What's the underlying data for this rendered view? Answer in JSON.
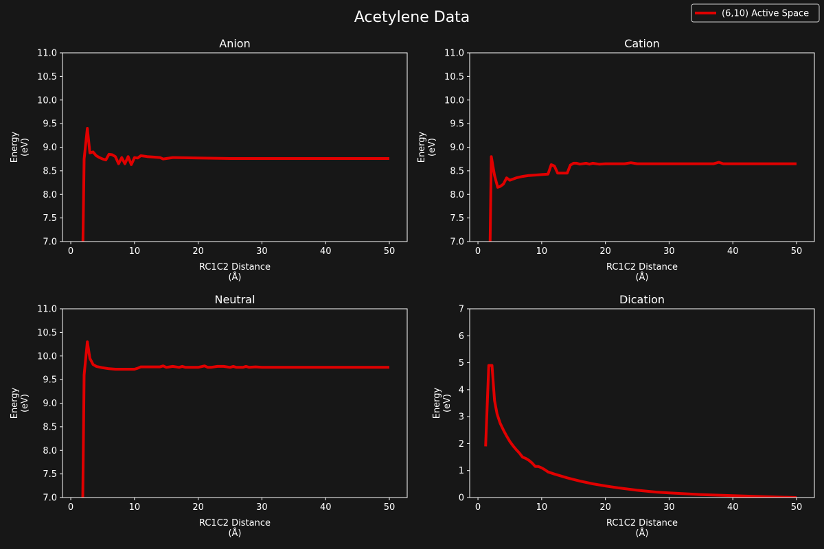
{
  "figure": {
    "title": "Acetylene Data",
    "legend_label": "(6,10) Active Space",
    "legend_position": "top-right",
    "background": "#171717",
    "line_color": "#e00000",
    "text_color": "#ffffff"
  },
  "chart_data": [
    {
      "type": "line",
      "title": "Anion",
      "xlabel": "RC1C2 Distance\n(Å)",
      "ylabel": "Energy\n(eV)",
      "xlim": [
        -1.3,
        52.8
      ],
      "ylim": [
        7.0,
        11.0
      ],
      "xticks": [
        0,
        10,
        20,
        30,
        40,
        50
      ],
      "yticks": [
        7.0,
        7.5,
        8.0,
        8.5,
        9.0,
        9.5,
        10.0,
        10.5,
        11.0
      ],
      "ytick_labels": [
        "7.0",
        "7.5",
        "8.0",
        "8.5",
        "9.0",
        "9.5",
        "10.0",
        "10.5",
        "11.0"
      ],
      "series": [
        {
          "x": [
            1.8,
            2.1,
            2.6,
            3.0,
            3.5,
            4.0,
            4.5,
            5.0,
            5.5,
            6.0,
            6.5,
            7.0,
            7.5,
            8.0,
            8.5,
            9.0,
            9.5,
            10.0,
            10.5,
            11.0,
            12.0,
            13.0,
            14.0,
            14.5,
            15.0,
            16.0,
            20.0,
            25.0,
            30.0,
            40.0,
            50.0
          ],
          "y": [
            6.0,
            8.75,
            9.4,
            8.88,
            8.9,
            8.82,
            8.78,
            8.75,
            8.73,
            8.85,
            8.84,
            8.8,
            8.65,
            8.78,
            8.65,
            8.8,
            8.63,
            8.78,
            8.77,
            8.82,
            8.8,
            8.79,
            8.78,
            8.75,
            8.76,
            8.78,
            8.77,
            8.76,
            8.76,
            8.76,
            8.76
          ]
        }
      ]
    },
    {
      "type": "line",
      "title": "Cation",
      "xlabel": "RC1C2 Distance\n(Å)",
      "ylabel": "Energy\n(eV)",
      "xlim": [
        -1.3,
        52.8
      ],
      "ylim": [
        7.0,
        11.0
      ],
      "xticks": [
        0,
        10,
        20,
        30,
        40,
        50
      ],
      "yticks": [
        7.0,
        7.5,
        8.0,
        8.5,
        9.0,
        9.5,
        10.0,
        10.5,
        11.0
      ],
      "ytick_labels": [
        "7.0",
        "7.5",
        "8.0",
        "8.5",
        "9.0",
        "9.5",
        "10.0",
        "10.5",
        "11.0"
      ],
      "series": [
        {
          "x": [
            1.8,
            2.1,
            2.6,
            3.1,
            3.5,
            4.0,
            4.5,
            5.0,
            6.0,
            7.0,
            8.0,
            9.0,
            10.0,
            11.0,
            11.5,
            12.0,
            12.5,
            13.0,
            14.0,
            14.5,
            15.0,
            15.5,
            16.0,
            17.0,
            17.5,
            18.0,
            19.0,
            20.0,
            23.0,
            24.0,
            25.0,
            37.0,
            37.8,
            38.5,
            50.0
          ],
          "y": [
            6.0,
            8.8,
            8.4,
            8.15,
            8.17,
            8.22,
            8.35,
            8.3,
            8.35,
            8.38,
            8.4,
            8.41,
            8.42,
            8.43,
            8.63,
            8.6,
            8.45,
            8.45,
            8.45,
            8.62,
            8.66,
            8.66,
            8.64,
            8.66,
            8.64,
            8.66,
            8.64,
            8.65,
            8.65,
            8.67,
            8.65,
            8.65,
            8.68,
            8.65,
            8.65
          ]
        }
      ]
    },
    {
      "type": "line",
      "title": "Neutral",
      "xlabel": "RC1C2 Distance\n(Å)",
      "ylabel": "Energy\n(eV)",
      "xlim": [
        -1.3,
        52.8
      ],
      "ylim": [
        7.0,
        11.0
      ],
      "xticks": [
        0,
        10,
        20,
        30,
        40,
        50
      ],
      "yticks": [
        7.0,
        7.5,
        8.0,
        8.5,
        9.0,
        9.5,
        10.0,
        10.5,
        11.0
      ],
      "ytick_labels": [
        "7.0",
        "7.5",
        "8.0",
        "8.5",
        "9.0",
        "9.5",
        "10.0",
        "10.5",
        "11.0"
      ],
      "series": [
        {
          "x": [
            1.8,
            2.1,
            2.6,
            3.0,
            3.5,
            4.0,
            5.0,
            6.0,
            7.0,
            8.0,
            9.0,
            10.0,
            10.5,
            11.0,
            12.0,
            13.0,
            14.0,
            14.5,
            15.0,
            15.5,
            16.0,
            17.0,
            17.5,
            18.0,
            19.0,
            20.0,
            21.0,
            21.5,
            22.0,
            23.0,
            24.0,
            25.0,
            25.5,
            26.0,
            27.0,
            27.5,
            28.0,
            29.0,
            30.0,
            40.0,
            50.0
          ],
          "y": [
            6.0,
            9.6,
            10.3,
            9.95,
            9.82,
            9.78,
            9.75,
            9.73,
            9.72,
            9.72,
            9.72,
            9.72,
            9.74,
            9.77,
            9.77,
            9.77,
            9.77,
            9.79,
            9.76,
            9.77,
            9.78,
            9.76,
            9.78,
            9.76,
            9.76,
            9.76,
            9.79,
            9.76,
            9.76,
            9.78,
            9.78,
            9.76,
            9.78,
            9.76,
            9.76,
            9.78,
            9.76,
            9.77,
            9.76,
            9.76,
            9.76
          ]
        }
      ]
    },
    {
      "type": "line",
      "title": "Dication",
      "xlabel": "RC1C2 Distance\n(Å)",
      "ylabel": "Energy\n(eV)",
      "xlim": [
        -1.3,
        52.8
      ],
      "ylim": [
        0,
        7
      ],
      "xticks": [
        0,
        10,
        20,
        30,
        40,
        50
      ],
      "yticks": [
        0,
        1,
        2,
        3,
        4,
        5,
        6,
        7
      ],
      "ytick_labels": [
        "0",
        "1",
        "2",
        "3",
        "4",
        "5",
        "6",
        "7"
      ],
      "series": [
        {
          "x": [
            1.2,
            1.7,
            2.2,
            2.6,
            3.0,
            3.5,
            4.0,
            4.5,
            5.0,
            5.5,
            6.0,
            6.5,
            7.0,
            7.5,
            8.0,
            8.5,
            9.0,
            9.5,
            10.0,
            10.5,
            11.0,
            12.0,
            13.0,
            14.0,
            15.0,
            16.0,
            18.0,
            20.0,
            22.0,
            25.0,
            28.0,
            30.0,
            35.0,
            40.0,
            45.0,
            50.0
          ],
          "y": [
            1.9,
            4.9,
            4.9,
            3.6,
            3.1,
            2.75,
            2.5,
            2.28,
            2.08,
            1.92,
            1.78,
            1.65,
            1.5,
            1.45,
            1.38,
            1.28,
            1.15,
            1.15,
            1.1,
            1.03,
            0.95,
            0.87,
            0.8,
            0.73,
            0.67,
            0.61,
            0.51,
            0.43,
            0.36,
            0.27,
            0.2,
            0.17,
            0.11,
            0.07,
            0.03,
            0.0
          ]
        }
      ]
    }
  ]
}
